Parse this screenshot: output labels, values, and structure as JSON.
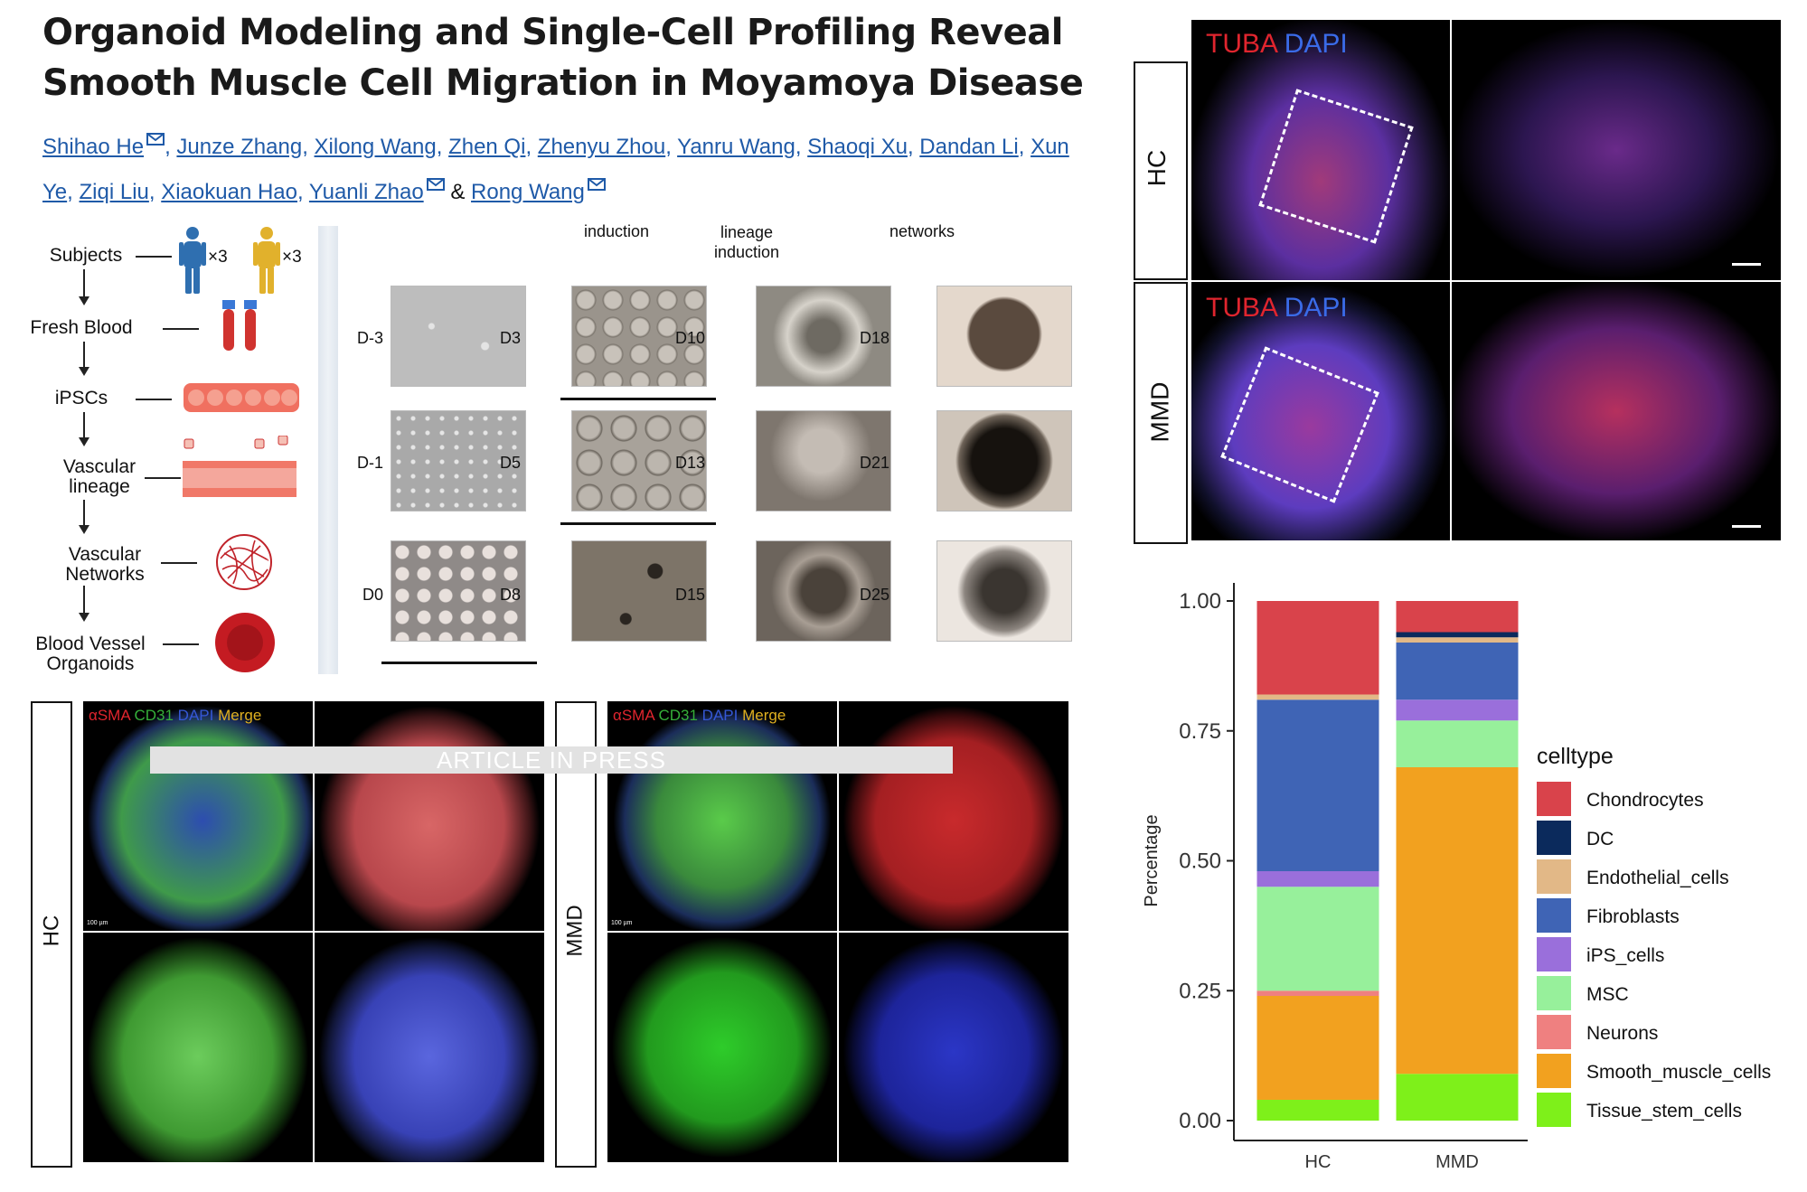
{
  "paper": {
    "title_line1": "Organoid Modeling and Single-Cell Profiling Reveal",
    "title_line2": "Smooth Muscle Cell Migration in Moyamoya Disease",
    "authors_line1": [
      "Shihao He",
      "Junze Zhang",
      "Xilong Wang",
      "Zhen Qi",
      "Zhenyu Zhou",
      "Yanru Wang",
      "Shaoqi Xu",
      "Dandan Li",
      "Xun"
    ],
    "authors_line2": [
      "Ye",
      "Ziqi Liu",
      "Xiaokuan Hao",
      "Yuanli Zhao",
      "Rong Wang"
    ],
    "amp": "&",
    "watermark": "ARTICLE IN PRESS"
  },
  "flowchart": {
    "steps": [
      "Subjects",
      "Fresh Blood",
      "iPSCs",
      "Vascular\nlineage",
      "Vascular\nNetworks",
      "Blood Vessel\nOrganoids"
    ],
    "multiplier_1": "×3",
    "multiplier_2": "×3"
  },
  "timeline": {
    "stage_headers": [
      "induction",
      "lineage\ninduction",
      "networks"
    ],
    "day_labels": [
      "D-3",
      "D-1",
      "D0",
      "D3",
      "D5",
      "D8",
      "D10",
      "D13",
      "D15",
      "D18",
      "D21",
      "D25"
    ]
  },
  "immunofluorescence_top": {
    "row_labels": [
      "HC",
      "MMD"
    ],
    "channel_red": "TUBA",
    "channel_blue": "DAPI"
  },
  "organoid_panels": {
    "group_labels": [
      "HC",
      "MMD"
    ],
    "ch_asma": "αSMA",
    "ch_cd31": "CD31",
    "ch_dapi": "DAPI",
    "ch_merge": "Merge",
    "scale_text": "100 µm"
  },
  "colors": {
    "Chondrocytes": "#d9434b",
    "DC": "#0b2a5c",
    "Endothelial_cells": "#e2b887",
    "Fibroblasts": "#3f64b5",
    "iPS_cells": "#9a6fdb",
    "MSC": "#97f09b",
    "Neurons": "#ef8080",
    "Smooth_muscle_cells": "#f2a11f",
    "Tissue_stem_cells": "#7ef01a"
  },
  "chart_data": {
    "type": "bar",
    "stacked": true,
    "categories": [
      "HC",
      "MMD"
    ],
    "ylabel": "Percentage",
    "xlabel": "",
    "ylim": [
      0,
      1
    ],
    "yticks": [
      "0.00",
      "0.25",
      "0.50",
      "0.75",
      "1.00"
    ],
    "legend_title": "celltype",
    "legend_position": "right",
    "series": [
      {
        "name": "Tissue_stem_cells",
        "values": [
          0.04,
          0.09
        ]
      },
      {
        "name": "Smooth_muscle_cells",
        "values": [
          0.2,
          0.59
        ]
      },
      {
        "name": "Neurons",
        "values": [
          0.01,
          0.0
        ]
      },
      {
        "name": "MSC",
        "values": [
          0.2,
          0.09
        ]
      },
      {
        "name": "iPS_cells",
        "values": [
          0.03,
          0.04
        ]
      },
      {
        "name": "Fibroblasts",
        "values": [
          0.33,
          0.11
        ]
      },
      {
        "name": "Endothelial_cells",
        "values": [
          0.01,
          0.01
        ]
      },
      {
        "name": "DC",
        "values": [
          0.0,
          0.01
        ]
      },
      {
        "name": "Chondrocytes",
        "values": [
          0.18,
          0.06
        ]
      }
    ],
    "legend_order": [
      "Chondrocytes",
      "DC",
      "Endothelial_cells",
      "Fibroblasts",
      "iPS_cells",
      "MSC",
      "Neurons",
      "Smooth_muscle_cells",
      "Tissue_stem_cells"
    ]
  }
}
